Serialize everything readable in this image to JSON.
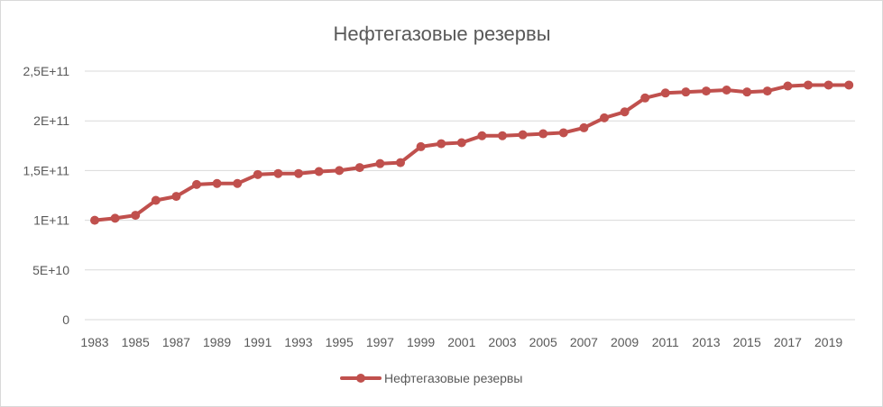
{
  "chart_data": {
    "type": "line",
    "title": "Нефтегазовые резервы",
    "xlabel": "",
    "ylabel": "",
    "ylim": [
      0,
      250000000000
    ],
    "yticks": [
      0,
      50000000000,
      100000000000,
      150000000000,
      200000000000,
      250000000000
    ],
    "ytick_labels": [
      "0",
      "5E+10",
      "1E+11",
      "1,5E+11",
      "2E+11",
      "2,5E+11"
    ],
    "xtick_labels": [
      "1983",
      "1985",
      "1987",
      "1989",
      "1991",
      "1993",
      "1995",
      "1997",
      "1999",
      "2001",
      "2003",
      "2005",
      "2007",
      "2009",
      "2011",
      "2013",
      "2015",
      "2017",
      "2019"
    ],
    "grid": true,
    "legend_position": "bottom",
    "series_color": "#c0504d",
    "categories": [
      1983,
      1984,
      1985,
      1986,
      1987,
      1988,
      1989,
      1990,
      1991,
      1992,
      1993,
      1994,
      1995,
      1996,
      1997,
      1998,
      1999,
      2000,
      2001,
      2002,
      2003,
      2004,
      2005,
      2006,
      2007,
      2008,
      2009,
      2010,
      2011,
      2012,
      2013,
      2014,
      2015,
      2016,
      2017,
      2018,
      2019,
      2020
    ],
    "series": [
      {
        "name": "Нефтегазовые резервы",
        "values": [
          100000000000,
          102000000000,
          105000000000,
          120000000000,
          124000000000,
          136000000000,
          137000000000,
          137000000000,
          146000000000,
          147000000000,
          147000000000,
          149000000000,
          150000000000,
          153000000000,
          157000000000,
          158000000000,
          174000000000,
          177000000000,
          178000000000,
          185000000000,
          185000000000,
          186000000000,
          187000000000,
          188000000000,
          193000000000,
          203000000000,
          209000000000,
          223000000000,
          228000000000,
          229000000000,
          230000000000,
          231000000000,
          229000000000,
          230000000000,
          235000000000,
          236000000000,
          236000000000,
          236000000000
        ]
      }
    ]
  }
}
